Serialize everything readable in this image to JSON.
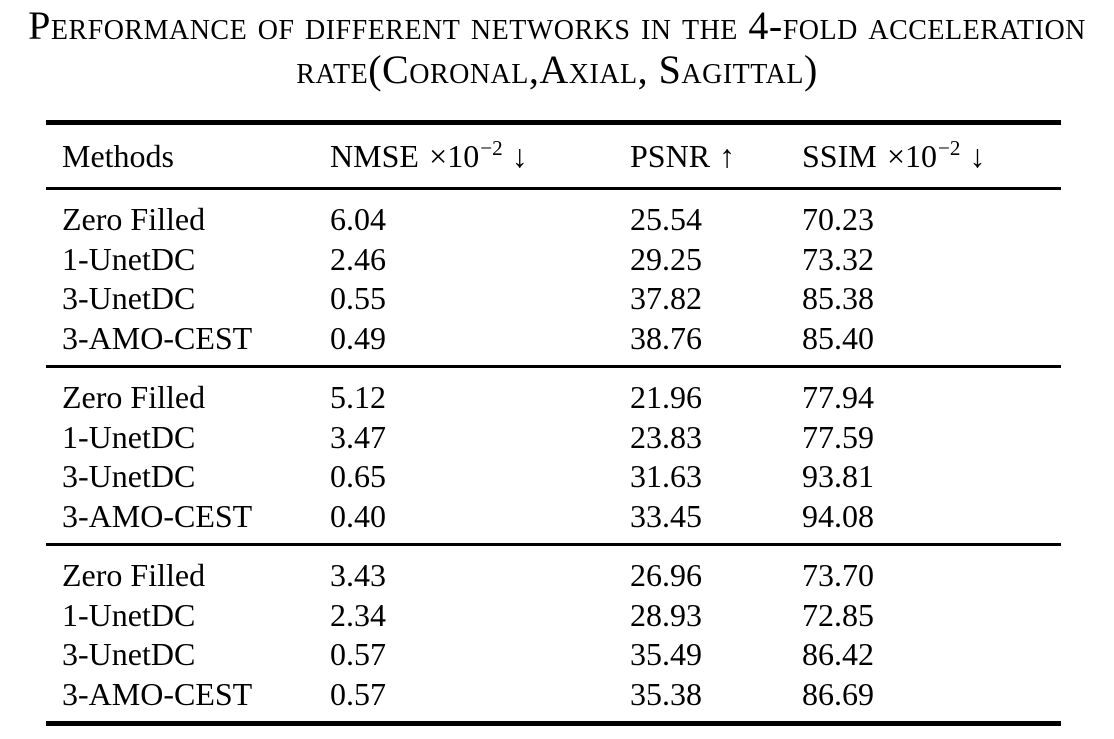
{
  "caption": {
    "line1": "Performance of different networks in the 4-fold acceleration",
    "line2": "rate(Coronal,Axial, Sagittal)"
  },
  "table": {
    "columns": [
      {
        "label": "Methods",
        "mult": "",
        "sup": "",
        "arrow": ""
      },
      {
        "label": "NMSE",
        "mult": "×10",
        "sup": "−2",
        "arrow": "↓"
      },
      {
        "label": "PSNR",
        "mult": "",
        "sup": "",
        "arrow": "↑"
      },
      {
        "label": "SSIM",
        "mult": "×10",
        "sup": "−2",
        "arrow": "↓"
      }
    ],
    "groups": [
      {
        "rows": [
          {
            "method": "Zero Filled",
            "nmse": "6.04",
            "psnr": "25.54",
            "ssim": "70.23"
          },
          {
            "method": "1-UnetDC",
            "nmse": "2.46",
            "psnr": "29.25",
            "ssim": "73.32"
          },
          {
            "method": "3-UnetDC",
            "nmse": "0.55",
            "psnr": "37.82",
            "ssim": "85.38"
          },
          {
            "method": "3-AMO-CEST",
            "nmse": "0.49",
            "psnr": "38.76",
            "ssim": "85.40"
          }
        ]
      },
      {
        "rows": [
          {
            "method": "Zero Filled",
            "nmse": "5.12",
            "psnr": "21.96",
            "ssim": "77.94"
          },
          {
            "method": "1-UnetDC",
            "nmse": "3.47",
            "psnr": "23.83",
            "ssim": "77.59"
          },
          {
            "method": "3-UnetDC",
            "nmse": "0.65",
            "psnr": "31.63",
            "ssim": "93.81"
          },
          {
            "method": "3-AMO-CEST",
            "nmse": "0.40",
            "psnr": "33.45",
            "ssim": "94.08"
          }
        ]
      },
      {
        "rows": [
          {
            "method": "Zero Filled",
            "nmse": "3.43",
            "psnr": "26.96",
            "ssim": "73.70"
          },
          {
            "method": "1-UnetDC",
            "nmse": "2.34",
            "psnr": "28.93",
            "ssim": "72.85"
          },
          {
            "method": "3-UnetDC",
            "nmse": "0.57",
            "psnr": "35.49",
            "ssim": "86.42"
          },
          {
            "method": "3-AMO-CEST",
            "nmse": "0.57",
            "psnr": "35.38",
            "ssim": "86.69"
          }
        ]
      }
    ]
  },
  "colors": {
    "text": "#000000",
    "background": "#ffffff",
    "rule": "#000000"
  }
}
